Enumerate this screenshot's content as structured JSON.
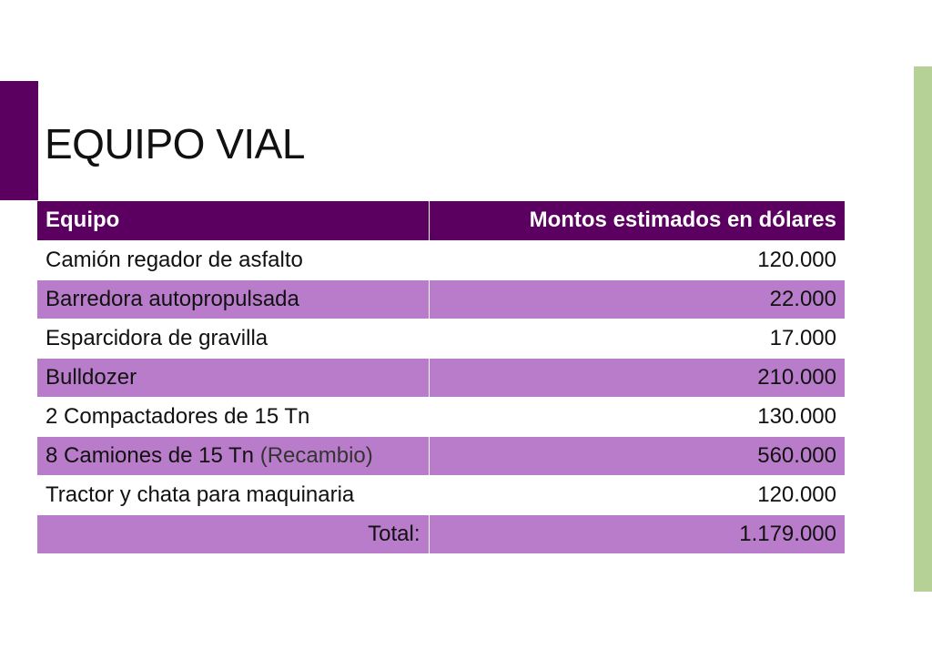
{
  "title": "EQUIPO VIAL",
  "table": {
    "headers": {
      "equipment": "Equipo",
      "amount": "Montos estimados en dólares"
    },
    "rows": [
      {
        "item": "Camión regador de asfalto",
        "note": "",
        "amount": "120.000"
      },
      {
        "item": "Barredora autopropulsada",
        "note": "",
        "amount": "22.000"
      },
      {
        "item": "Esparcidora de gravilla",
        "note": "",
        "amount": "17.000"
      },
      {
        "item": "Bulldozer",
        "note": "",
        "amount": "210.000"
      },
      {
        "item": "2 Compactadores de 15 Tn",
        "note": "",
        "amount": "130.000"
      },
      {
        "item": "8 Camiones de 15 Tn",
        "note": "(Recambio)",
        "amount": "560.000"
      },
      {
        "item": "Tractor y chata para maquinaria",
        "note": "",
        "amount": "120.000"
      }
    ],
    "total": {
      "label": "Total:",
      "amount": "1.179.000"
    }
  },
  "colors": {
    "header_bg": "#5b0060",
    "alt_row_bg": "#b97cca",
    "right_accent": "#b5d196"
  }
}
